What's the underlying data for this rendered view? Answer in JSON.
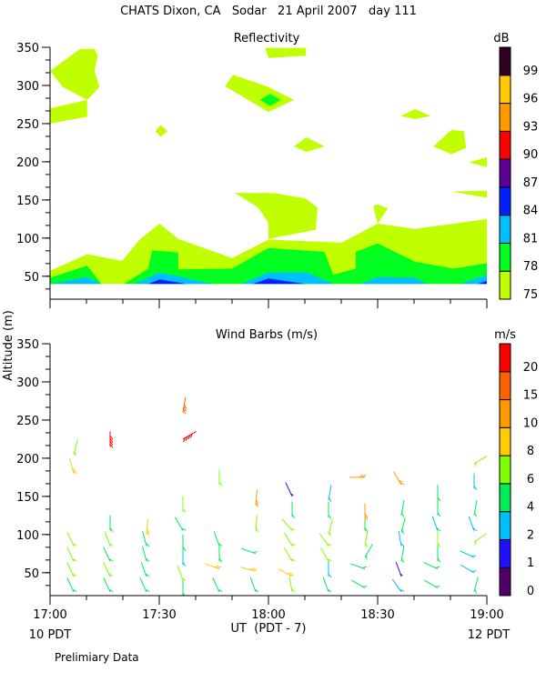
{
  "chart_data": [
    {
      "type": "heatmap",
      "title": "Reflectivity",
      "ylabel": "Altitude (m)",
      "xlabel": "UT  (PDT - 7)",
      "xlim_minutes_after_1700": [
        0,
        120
      ],
      "ylim": [
        20,
        350
      ],
      "yticks": [
        50,
        100,
        150,
        200,
        250,
        300,
        350
      ],
      "colorbar": {
        "unit": "dB",
        "levels": [
          75,
          78,
          81,
          84,
          87,
          90,
          93,
          96,
          99
        ],
        "colors": [
          "#c0ff00",
          "#00ff20",
          "#00bfff",
          "#0020ff",
          "#5a0096",
          "#ff0000",
          "#ff9900",
          "#ffc800",
          "#300020"
        ]
      },
      "contours": [
        {
          "level": 75,
          "points": [
            [
              0,
              40
            ],
            [
              0,
              57
            ],
            [
              10.2,
              79
            ],
            [
              19.8,
              70
            ],
            [
              24.6,
              98
            ],
            [
              30.1,
              119
            ],
            [
              35.2,
              99
            ],
            [
              50,
              74
            ],
            [
              60,
              98
            ],
            [
              80.2,
              94
            ],
            [
              90,
              119
            ],
            [
              100.3,
              112
            ],
            [
              120,
              125
            ],
            [
              120,
              40
            ]
          ]
        },
        {
          "level": 75,
          "points": [
            [
              0,
              319
            ],
            [
              8.3,
              348
            ],
            [
              12.2,
              348
            ],
            [
              13.1,
              339
            ],
            [
              12.2,
              319
            ],
            [
              13.6,
              298
            ],
            [
              10.2,
              281
            ],
            [
              3.5,
              298
            ]
          ]
        },
        {
          "level": 75,
          "points": [
            [
              0,
              270
            ],
            [
              10.2,
              281
            ],
            [
              10.2,
              259
            ],
            [
              0,
              250
            ]
          ]
        },
        {
          "level": 75,
          "points": [
            [
              59.1,
              349
            ],
            [
              70.3,
              349
            ],
            [
              70.3,
              339
            ],
            [
              60,
              336
            ]
          ]
        },
        {
          "level": 75,
          "points": [
            [
              48.1,
              299
            ],
            [
              50.3,
              314
            ],
            [
              60,
              298
            ],
            [
              67,
              281
            ],
            [
              60,
              265
            ]
          ]
        },
        {
          "level": 75,
          "points": [
            [
              28.9,
              240
            ],
            [
              30.4,
              248
            ],
            [
              32.3,
              240
            ],
            [
              30.4,
              233
            ]
          ]
        },
        {
          "level": 75,
          "points": [
            [
              67,
              220
            ],
            [
              70.4,
              232
            ],
            [
              75.4,
              220
            ],
            [
              70.4,
              213
            ]
          ]
        },
        {
          "level": 75,
          "points": [
            [
              96.3,
              260
            ],
            [
              100.3,
              269
            ],
            [
              104.6,
              260
            ],
            [
              100.3,
              256
            ]
          ]
        },
        {
          "level": 75,
          "points": [
            [
              105.3,
              220
            ],
            [
              110.3,
              242
            ],
            [
              113.7,
              240
            ],
            [
              114.3,
              218
            ],
            [
              110.3,
              210
            ]
          ]
        },
        {
          "level": 75,
          "points": [
            [
              115.1,
              199
            ],
            [
              120,
              206
            ],
            [
              120,
              193
            ]
          ]
        },
        {
          "level": 75,
          "points": [
            [
              110.3,
              161
            ],
            [
              120,
              162
            ],
            [
              120,
              153
            ]
          ]
        },
        {
          "level": 75,
          "points": [
            [
              50.8,
              159
            ],
            [
              61.5,
              159
            ],
            [
              70.1,
              152
            ],
            [
              73.5,
              140
            ],
            [
              73,
              111
            ],
            [
              60,
              99
            ],
            [
              60,
              120
            ],
            [
              57.2,
              140
            ]
          ]
        },
        {
          "level": 75,
          "points": [
            [
              88.8,
              142
            ],
            [
              90,
              144
            ],
            [
              92.8,
              139
            ],
            [
              90,
              119
            ]
          ]
        },
        {
          "level": 78,
          "points": [
            [
              0,
              40
            ],
            [
              0,
              48
            ],
            [
              10.2,
              64
            ],
            [
              14.1,
              40
            ],
            [
              20.3,
              40
            ],
            [
              27,
              60
            ],
            [
              28,
              84
            ],
            [
              35.2,
              81
            ],
            [
              35.2,
              59
            ],
            [
              50,
              60
            ],
            [
              60,
              87
            ],
            [
              75.4,
              82
            ],
            [
              77.8,
              52
            ],
            [
              84,
              60
            ],
            [
              84,
              82
            ],
            [
              90,
              93
            ],
            [
              100.3,
              69
            ],
            [
              110.8,
              60
            ],
            [
              120,
              67
            ],
            [
              120,
              40
            ]
          ]
        },
        {
          "level": 78,
          "points": [
            [
              57.7,
              281
            ],
            [
              60.5,
              289
            ],
            [
              63.4,
              281
            ],
            [
              60.5,
              273
            ]
          ]
        },
        {
          "level": 81,
          "points": [
            [
              0,
              40
            ],
            [
              10.2,
              49
            ],
            [
              14.1,
              40
            ]
          ]
        },
        {
          "level": 81,
          "points": [
            [
              23.2,
              40
            ],
            [
              30.1,
              55
            ],
            [
              44.7,
              40
            ]
          ]
        },
        {
          "level": 81,
          "points": [
            [
              52.4,
              40
            ],
            [
              60,
              55
            ],
            [
              70.6,
              55
            ],
            [
              77.8,
              40
            ]
          ]
        },
        {
          "level": 81,
          "points": [
            [
              85,
              40
            ],
            [
              90,
              49
            ],
            [
              100.3,
              48
            ],
            [
              103.6,
              40
            ]
          ]
        },
        {
          "level": 81,
          "points": [
            [
              112.7,
              40
            ],
            [
              120,
              52
            ],
            [
              120,
              40
            ]
          ]
        },
        {
          "level": 84,
          "points": [
            [
              27,
              40
            ],
            [
              30.1,
              46
            ],
            [
              37.5,
              40
            ]
          ]
        },
        {
          "level": 84,
          "points": [
            [
              55.7,
              40
            ],
            [
              60,
              47
            ],
            [
              70.1,
              40
            ]
          ]
        },
        {
          "level": 84,
          "points": [
            [
              117.5,
              40
            ],
            [
              120,
              44
            ],
            [
              120,
              40
            ]
          ]
        }
      ]
    },
    {
      "type": "scatter",
      "title": "Wind Barbs (m/s)",
      "ylabel": "Altitude (m)",
      "xlabel": "UT  (PDT - 7)",
      "xlim_minutes_after_1700": [
        0,
        120
      ],
      "ylim": [
        20,
        350
      ],
      "yticks": [
        50,
        100,
        150,
        200,
        250,
        300,
        350
      ],
      "xticks": [
        "17:00",
        "17:30",
        "18:00",
        "18:30",
        "19:00"
      ],
      "colorbar": {
        "unit": "m/s",
        "levels": [
          0,
          1,
          2,
          4,
          6,
          8,
          10,
          15,
          20
        ],
        "colors": [
          "#500066",
          "#2010ff",
          "#00bfff",
          "#00ee55",
          "#80ff00",
          "#ffcc00",
          "#ff9900",
          "#ff6000",
          "#ff0000"
        ]
      },
      "barbs_fields": [
        "minute",
        "altitude",
        "speed",
        "direction_deg"
      ],
      "barbs": [
        [
          6.5,
          25,
          5,
          335
        ],
        [
          6.5,
          45,
          7,
          335
        ],
        [
          6.5,
          65,
          7,
          335
        ],
        [
          6.5,
          85,
          7,
          335
        ],
        [
          6.5,
          180,
          9,
          345
        ],
        [
          6.5,
          205,
          6,
          15
        ],
        [
          16.5,
          25,
          5,
          335
        ],
        [
          16.5,
          45,
          7,
          335
        ],
        [
          16.5,
          65,
          5,
          335
        ],
        [
          16.5,
          85,
          7,
          340
        ],
        [
          16.5,
          105,
          5,
          0
        ],
        [
          16.5,
          215,
          21,
          0
        ],
        [
          26.5,
          25,
          5,
          335
        ],
        [
          26.5,
          45,
          5,
          340
        ],
        [
          26.5,
          65,
          5,
          345
        ],
        [
          26.5,
          85,
          5,
          345
        ],
        [
          26.5,
          100,
          9,
          5
        ],
        [
          36.5,
          20,
          4,
          0
        ],
        [
          36.5,
          40,
          6,
          340
        ],
        [
          36.5,
          60,
          3,
          0
        ],
        [
          36.5,
          80,
          5,
          0
        ],
        [
          36.5,
          105,
          5,
          330
        ],
        [
          36.5,
          130,
          7,
          0
        ],
        [
          36.5,
          225,
          22,
          60
        ],
        [
          36.5,
          260,
          16,
          10
        ],
        [
          46.5,
          25,
          5,
          335
        ],
        [
          46.5,
          55,
          8,
          290
        ],
        [
          46.5,
          65,
          5,
          0
        ],
        [
          46.5,
          85,
          5,
          340
        ],
        [
          46.5,
          165,
          7,
          0
        ],
        [
          56.5,
          25,
          5,
          340
        ],
        [
          56.5,
          52,
          9,
          285
        ],
        [
          56.5,
          75,
          5,
          290
        ],
        [
          56.5,
          105,
          7,
          5
        ],
        [
          56.5,
          138,
          11,
          5
        ],
        [
          66.5,
          25,
          6,
          350
        ],
        [
          66.5,
          45,
          9,
          300
        ],
        [
          66.5,
          65,
          6,
          330
        ],
        [
          66.5,
          85,
          6,
          330
        ],
        [
          66.5,
          105,
          7,
          320
        ],
        [
          66.5,
          123,
          5,
          0
        ],
        [
          66.5,
          150,
          1,
          335
        ],
        [
          76.5,
          25,
          5,
          340
        ],
        [
          76.5,
          45,
          3,
          0
        ],
        [
          76.5,
          65,
          6,
          330
        ],
        [
          76.5,
          85,
          6,
          325
        ],
        [
          76.5,
          100,
          7,
          15
        ],
        [
          76.5,
          122,
          5,
          0
        ],
        [
          76.5,
          145,
          3,
          10
        ],
        [
          86.5,
          30,
          5,
          300
        ],
        [
          86.5,
          55,
          5,
          290
        ],
        [
          86.5,
          70,
          5,
          30
        ],
        [
          86.5,
          85,
          7,
          10
        ],
        [
          86.5,
          105,
          5,
          0
        ],
        [
          86.5,
          120,
          10,
          0
        ],
        [
          86.5,
          175,
          10,
          270
        ],
        [
          96.5,
          25,
          3,
          325
        ],
        [
          96.5,
          45,
          1,
          340
        ],
        [
          96.5,
          65,
          5,
          10
        ],
        [
          96.5,
          85,
          3,
          350
        ],
        [
          96.5,
          103,
          5,
          15
        ],
        [
          96.5,
          125,
          5,
          10
        ],
        [
          96.5,
          165,
          11,
          330
        ],
        [
          106.5,
          30,
          5,
          300
        ],
        [
          106.5,
          55,
          5,
          295
        ],
        [
          106.5,
          65,
          5,
          0
        ],
        [
          106.5,
          85,
          6,
          0
        ],
        [
          106.5,
          105,
          3,
          340
        ],
        [
          106.5,
          125,
          5,
          0
        ],
        [
          106.5,
          145,
          5,
          0
        ],
        [
          116.5,
          25,
          5,
          15
        ],
        [
          116.5,
          50,
          3,
          300
        ],
        [
          116.5,
          70,
          3,
          295
        ],
        [
          116.5,
          90,
          7,
          55
        ],
        [
          116.5,
          105,
          3,
          340
        ],
        [
          116.5,
          125,
          5,
          10
        ],
        [
          116.5,
          160,
          3,
          0
        ],
        [
          116.5,
          193,
          6,
          60
        ]
      ]
    }
  ],
  "page": {
    "title": "CHATS Dixon, CA   Sodar   21 April 2007   day 111",
    "top_panel_title": "Reflectivity",
    "top_colorbar_unit": "dB",
    "bottom_panel_title": "Wind Barbs (m/s)",
    "bottom_colorbar_unit": "m/s",
    "y_axis_label": "Altitude (m)",
    "x_axis_label": "UT  (PDT - 7)",
    "x_left_local": "10 PDT",
    "x_right_local": "12 PDT",
    "footer_note": "Prelimiary Data"
  }
}
